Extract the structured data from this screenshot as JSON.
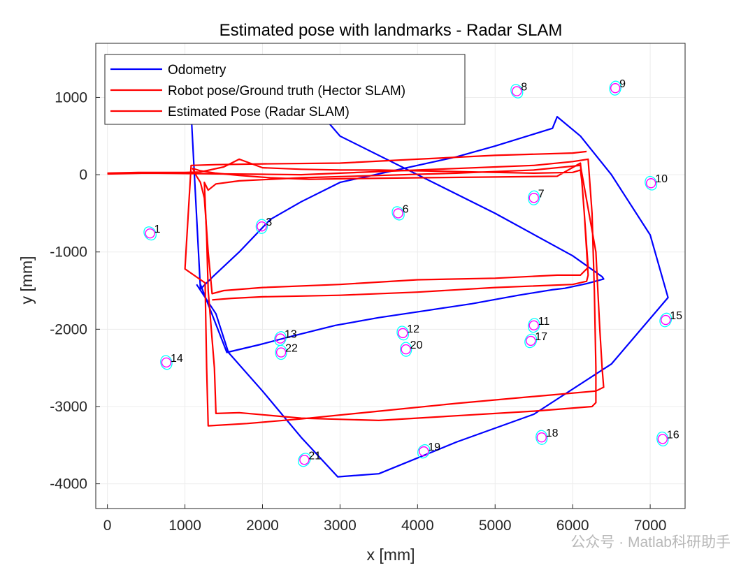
{
  "chart_data": {
    "type": "line",
    "title": "Estimated pose with landmarks - Radar SLAM",
    "xlabel": "x [mm]",
    "ylabel": "y [mm]",
    "xlim": [
      -150,
      7450
    ],
    "ylim": [
      -4320,
      1700
    ],
    "xticks": [
      0,
      1000,
      2000,
      3000,
      4000,
      5000,
      6000,
      7000
    ],
    "yticks": [
      1000,
      0,
      -1000,
      -2000,
      -3000,
      -4000
    ],
    "grid": true,
    "legend": "top-left",
    "series": [
      {
        "name": "Odometry",
        "color": "#0000ff",
        "x": [
          1200,
          1540,
          1960,
          2420,
          2940,
          3500,
          4100,
          4700,
          5300,
          5730,
          5900,
          6180,
          6400,
          6380,
          6000,
          5000,
          4000,
          3000,
          2700,
          2300,
          1850,
          1520,
          1320,
          1200,
          1000,
          1060,
          1200,
          1360,
          1700,
          2100,
          2500,
          3000,
          4500,
          5000,
          5740,
          5800,
          6100,
          6500,
          7000,
          7230,
          6500,
          5500,
          4500,
          3500,
          2970,
          2500,
          2000,
          1560,
          1400,
          1150
        ],
        "y": [
          -1420,
          -2300,
          -2200,
          -2080,
          -1950,
          -1850,
          -1760,
          -1670,
          -1560,
          -1490,
          -1470,
          -1410,
          -1350,
          -1320,
          -1050,
          -500,
          0,
          500,
          850,
          1000,
          1100,
          1160,
          1180,
          1180,
          1150,
          1180,
          -1480,
          -1320,
          -1000,
          -580,
          -350,
          -100,
          230,
          370,
          600,
          750,
          500,
          0,
          -780,
          -1590,
          -2450,
          -3100,
          -3460,
          -3870,
          -3910,
          -3400,
          -2800,
          -2300,
          -1800,
          -1420
        ]
      },
      {
        "name": "Robot pose/Ground truth (Hector SLAM)",
        "color": "#ff0000",
        "x": [
          0,
          500,
          1000,
          1500,
          2000,
          2500,
          3000,
          3500,
          4000,
          4500,
          5000,
          5500,
          6000,
          6200,
          6250,
          6280,
          6300,
          6300,
          6250,
          5500,
          4500,
          3500,
          2500,
          1700,
          1400,
          1380,
          1300,
          1280,
          1250,
          1300,
          1400,
          1700,
          2500,
          3500,
          4500,
          5500,
          6100,
          6300,
          6350,
          6380,
          6400,
          6300,
          5500,
          4500,
          3500,
          2500,
          1800,
          1300,
          1280,
          1260,
          1000,
          1080,
          1400,
          2000,
          3000,
          4000,
          5000,
          6000,
          6180
        ],
        "y": [
          10,
          20,
          15,
          10,
          5,
          0,
          20,
          40,
          60,
          80,
          100,
          120,
          170,
          200,
          -500,
          -1500,
          -2500,
          -2950,
          -3000,
          -3060,
          -3120,
          -3180,
          -3150,
          -3080,
          -3090,
          -2500,
          -1500,
          -800,
          -100,
          -200,
          -120,
          -80,
          -40,
          -10,
          20,
          60,
          120,
          -1000,
          -2000,
          -2500,
          -2750,
          -2800,
          -2870,
          -2960,
          -3060,
          -3160,
          -3220,
          -3250,
          -2500,
          -1400,
          -1220,
          120,
          130,
          140,
          150,
          200,
          250,
          280,
          300
        ]
      },
      {
        "name": "Estimated Pose (Radar SLAM)",
        "color": "#ff0000",
        "x": [
          0,
          400,
          800,
          1000,
          1200,
          1500,
          1600,
          1700,
          2000,
          2500,
          3000,
          3500,
          4000,
          4500,
          5000,
          5500,
          6000,
          6100,
          6120,
          6150,
          6200,
          6100,
          5800,
          5000,
          4000,
          3000,
          2000,
          1500,
          1350,
          1300,
          1250,
          1200,
          1150,
          1100,
          1200,
          1400,
          1700,
          2100,
          2600,
          3200,
          4000,
          5000,
          5800,
          6100,
          6150,
          6200,
          6180,
          6000,
          5000,
          4000,
          3000,
          2000,
          1600,
          1350
        ],
        "y": [
          20,
          30,
          30,
          30,
          35,
          100,
          150,
          200,
          90,
          70,
          60,
          60,
          50,
          40,
          30,
          20,
          30,
          60,
          -100,
          -500,
          -1200,
          -1300,
          -1300,
          -1340,
          -1360,
          -1420,
          -1460,
          -1500,
          -1540,
          -1000,
          -300,
          -100,
          -20,
          80,
          50,
          20,
          -10,
          -40,
          -60,
          -50,
          -40,
          -30,
          -20,
          150,
          -500,
          -1300,
          -1380,
          -1420,
          -1460,
          -1520,
          -1560,
          -1580,
          -1600,
          -1620
        ]
      }
    ],
    "landmarks": {
      "marker_color": "#ff00ff",
      "ellipse_color": "#00ffff",
      "points": [
        {
          "label": "1",
          "x": 550,
          "y": -760
        },
        {
          "label": "3",
          "x": 1990,
          "y": -670
        },
        {
          "label": "6",
          "x": 3750,
          "y": -500
        },
        {
          "label": "7",
          "x": 5500,
          "y": -300
        },
        {
          "label": "8",
          "x": 5280,
          "y": 1080
        },
        {
          "label": "9",
          "x": 6550,
          "y": 1120
        },
        {
          "label": "10",
          "x": 7010,
          "y": -110
        },
        {
          "label": "11",
          "x": 5500,
          "y": -1950
        },
        {
          "label": "12",
          "x": 3810,
          "y": -2050
        },
        {
          "label": "13",
          "x": 2230,
          "y": -2120
        },
        {
          "label": "14",
          "x": 760,
          "y": -2430
        },
        {
          "label": "15",
          "x": 7200,
          "y": -1880
        },
        {
          "label": "16",
          "x": 7160,
          "y": -3420
        },
        {
          "label": "17",
          "x": 5460,
          "y": -2150
        },
        {
          "label": "18",
          "x": 5600,
          "y": -3400
        },
        {
          "label": "19",
          "x": 4080,
          "y": -3580
        },
        {
          "label": "20",
          "x": 3850,
          "y": -2260
        },
        {
          "label": "21",
          "x": 2540,
          "y": -3690
        },
        {
          "label": "22",
          "x": 2240,
          "y": -2300
        }
      ]
    }
  },
  "watermark": "公众号 · Matlab科研助手"
}
